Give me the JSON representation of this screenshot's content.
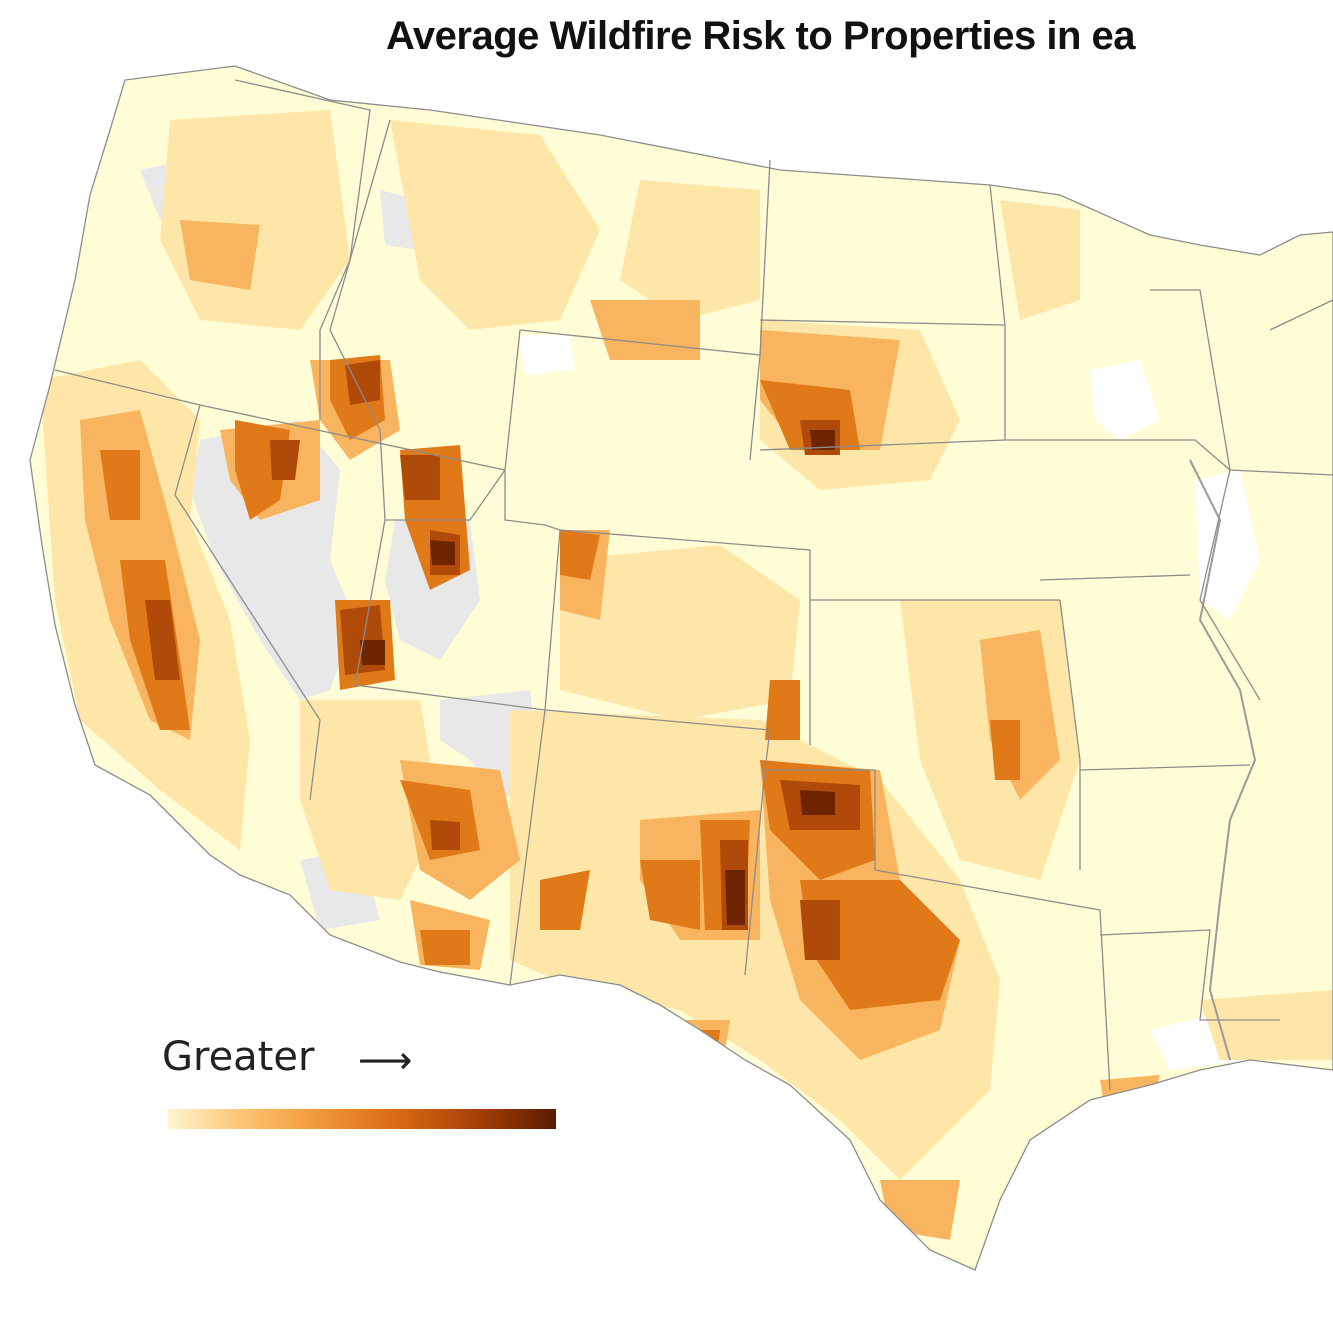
{
  "title": "Average Wildfire Risk to Properties in ea",
  "legend": {
    "label": "Greater",
    "arrow": "⟶",
    "gradient_colors": [
      "#fff6cf",
      "#fdc777",
      "#f29a3a",
      "#d86810",
      "#a53f06",
      "#5a1a00"
    ]
  },
  "colors": {
    "state_border": "#8c8c8c",
    "no_data": "#e8e8e8",
    "lowest_risk": "#fffdd5",
    "low_risk": "#fde6a8",
    "moderate_risk": "#f8b45e",
    "high_risk": "#e07a18",
    "very_high_risk": "#b04a08",
    "extreme_risk": "#6e2400"
  }
}
